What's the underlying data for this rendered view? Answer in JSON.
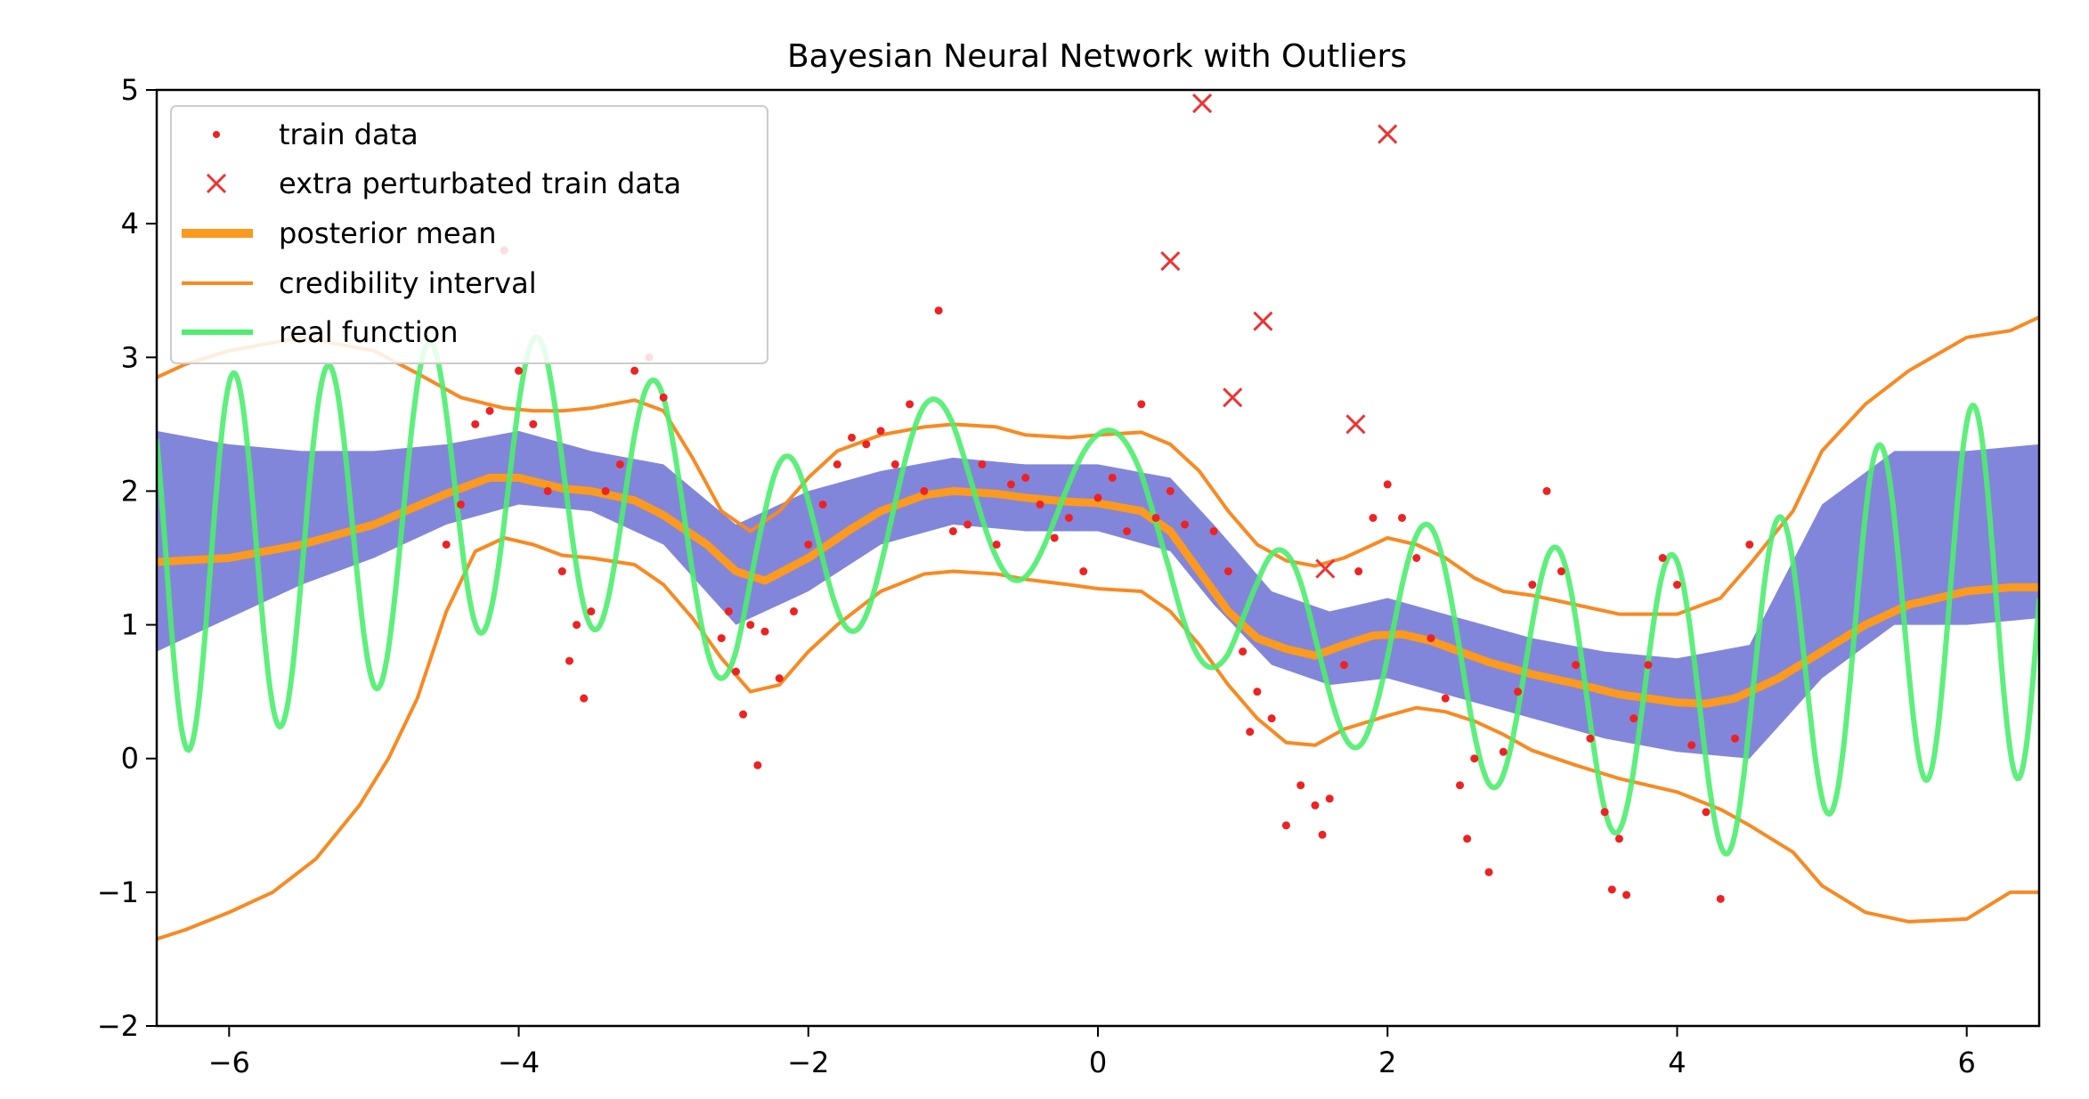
{
  "chart_data": {
    "type": "line",
    "title": "Bayesian Neural Network with Outliers",
    "xlabel": "",
    "ylabel": "",
    "xlim": [
      -6.5,
      6.5
    ],
    "ylim": [
      -2,
      5
    ],
    "x_ticks": [
      -6,
      -4,
      -2,
      0,
      2,
      4,
      6
    ],
    "x_tick_labels": [
      "−6",
      "−4",
      "−2",
      "0",
      "2",
      "4",
      "6"
    ],
    "y_ticks": [
      -2,
      -1,
      0,
      1,
      2,
      3,
      4,
      5
    ],
    "y_tick_labels": [
      "−2",
      "−1",
      "0",
      "1",
      "2",
      "3",
      "4",
      "5"
    ],
    "grid": false,
    "legend_position": "top-left",
    "legend": {
      "train": "train data",
      "extra": "extra perturbated train data",
      "mean": "posterior mean",
      "ci": "credibility interval",
      "real": "real function"
    },
    "colors": {
      "train": "#ee2222",
      "extra": "#ee3333",
      "mean": "#fb9a1e",
      "ci": "#f88a22",
      "real": "#4ded6e",
      "samples": "#7b80d8"
    },
    "series": [
      {
        "key": "mean",
        "x": [
          -6.5,
          -6.0,
          -5.5,
          -5.0,
          -4.5,
          -4.2,
          -4.0,
          -3.7,
          -3.5,
          -3.2,
          -3.0,
          -2.7,
          -2.5,
          -2.3,
          -2.0,
          -1.7,
          -1.5,
          -1.2,
          -1.0,
          -0.7,
          -0.5,
          -0.2,
          0.0,
          0.3,
          0.5,
          0.7,
          0.9,
          1.1,
          1.3,
          1.5,
          1.7,
          1.9,
          2.1,
          2.3,
          2.5,
          2.7,
          3.0,
          3.3,
          3.6,
          4.0,
          4.2,
          4.4,
          4.7,
          5.0,
          5.3,
          5.6,
          6.0,
          6.3,
          6.5
        ],
        "y": [
          1.47,
          1.5,
          1.6,
          1.75,
          1.98,
          2.1,
          2.1,
          2.02,
          2.0,
          1.93,
          1.82,
          1.6,
          1.4,
          1.33,
          1.5,
          1.72,
          1.85,
          1.97,
          2.0,
          1.98,
          1.95,
          1.92,
          1.91,
          1.85,
          1.7,
          1.4,
          1.1,
          0.9,
          0.82,
          0.77,
          0.85,
          0.92,
          0.93,
          0.88,
          0.8,
          0.72,
          0.63,
          0.56,
          0.48,
          0.42,
          0.41,
          0.45,
          0.6,
          0.8,
          1.0,
          1.15,
          1.25,
          1.28,
          1.28
        ]
      },
      {
        "key": "ci-upper",
        "x": [
          -6.5,
          -6.3,
          -6.0,
          -5.5,
          -5.0,
          -4.7,
          -4.4,
          -4.1,
          -3.9,
          -3.7,
          -3.5,
          -3.2,
          -3.0,
          -2.8,
          -2.6,
          -2.4,
          -2.2,
          -2.0,
          -1.8,
          -1.5,
          -1.2,
          -1.0,
          -0.7,
          -0.5,
          -0.2,
          0.0,
          0.3,
          0.5,
          0.7,
          0.9,
          1.1,
          1.3,
          1.5,
          1.7,
          2.0,
          2.2,
          2.4,
          2.6,
          2.8,
          3.0,
          3.3,
          3.6,
          4.0,
          4.3,
          4.5,
          4.8,
          5.0,
          5.3,
          5.6,
          6.0,
          6.3,
          6.5
        ],
        "y": [
          2.85,
          2.95,
          3.05,
          3.15,
          3.05,
          2.88,
          2.7,
          2.62,
          2.6,
          2.6,
          2.62,
          2.68,
          2.6,
          2.25,
          1.85,
          1.7,
          1.85,
          2.1,
          2.3,
          2.42,
          2.48,
          2.5,
          2.48,
          2.42,
          2.4,
          2.42,
          2.44,
          2.35,
          2.15,
          1.85,
          1.6,
          1.48,
          1.44,
          1.5,
          1.65,
          1.6,
          1.5,
          1.35,
          1.25,
          1.22,
          1.15,
          1.08,
          1.08,
          1.2,
          1.45,
          1.85,
          2.3,
          2.65,
          2.9,
          3.15,
          3.2,
          3.3
        ]
      },
      {
        "key": "ci-lower",
        "x": [
          -6.5,
          -6.3,
          -6.0,
          -5.7,
          -5.4,
          -5.1,
          -4.9,
          -4.7,
          -4.5,
          -4.3,
          -4.1,
          -3.9,
          -3.7,
          -3.5,
          -3.2,
          -3.0,
          -2.8,
          -2.6,
          -2.4,
          -2.2,
          -2.0,
          -1.8,
          -1.5,
          -1.2,
          -1.0,
          -0.7,
          -0.5,
          -0.2,
          0.0,
          0.3,
          0.5,
          0.7,
          0.9,
          1.1,
          1.3,
          1.5,
          1.7,
          2.0,
          2.2,
          2.4,
          2.6,
          2.8,
          3.0,
          3.3,
          3.6,
          4.0,
          4.3,
          4.5,
          4.8,
          5.0,
          5.3,
          5.6,
          6.0,
          6.3,
          6.5
        ],
        "y": [
          -1.35,
          -1.28,
          -1.15,
          -1.0,
          -0.75,
          -0.35,
          0.0,
          0.45,
          1.1,
          1.55,
          1.65,
          1.6,
          1.52,
          1.5,
          1.45,
          1.3,
          1.05,
          0.75,
          0.5,
          0.55,
          0.8,
          1.0,
          1.25,
          1.38,
          1.4,
          1.38,
          1.34,
          1.3,
          1.27,
          1.25,
          1.1,
          0.85,
          0.55,
          0.3,
          0.12,
          0.1,
          0.22,
          0.32,
          0.38,
          0.35,
          0.28,
          0.18,
          0.06,
          -0.05,
          -0.15,
          -0.25,
          -0.38,
          -0.5,
          -0.7,
          -0.95,
          -1.15,
          -1.22,
          -1.2,
          -1.0,
          -1.0
        ]
      }
    ],
    "real_function": {
      "x_range": [
        -6.5,
        6.5
      ],
      "note": "oscillating signal around the posterior trend"
    },
    "samples_band": {
      "x": [
        -6.5,
        -6.0,
        -5.5,
        -5.0,
        -4.5,
        -4.0,
        -3.5,
        -3.0,
        -2.5,
        -2.0,
        -1.5,
        -1.0,
        -0.5,
        0.0,
        0.5,
        0.8,
        1.2,
        1.6,
        2.0,
        2.5,
        3.0,
        3.5,
        4.0,
        4.5,
        5.0,
        5.5,
        6.0,
        6.5
      ],
      "lower": [
        0.8,
        1.05,
        1.3,
        1.5,
        1.75,
        1.9,
        1.85,
        1.6,
        1.0,
        1.25,
        1.6,
        1.75,
        1.7,
        1.7,
        1.55,
        1.15,
        0.7,
        0.55,
        0.6,
        0.45,
        0.3,
        0.15,
        0.05,
        0.0,
        0.6,
        1.0,
        1.0,
        1.05
      ],
      "upper": [
        2.45,
        2.35,
        2.3,
        2.3,
        2.35,
        2.45,
        2.3,
        2.2,
        1.75,
        2.0,
        2.15,
        2.25,
        2.2,
        2.2,
        2.1,
        1.75,
        1.25,
        1.1,
        1.2,
        1.05,
        0.9,
        0.8,
        0.75,
        0.85,
        1.9,
        2.3,
        2.3,
        2.35
      ]
    },
    "train_points": [
      [
        -4.5,
        1.6
      ],
      [
        -4.4,
        1.9
      ],
      [
        -4.3,
        2.5
      ],
      [
        -4.2,
        2.6
      ],
      [
        -4.1,
        3.8
      ],
      [
        -4.0,
        2.9
      ],
      [
        -3.9,
        2.5
      ],
      [
        -3.8,
        2.0
      ],
      [
        -3.7,
        1.4
      ],
      [
        -3.65,
        0.73
      ],
      [
        -3.6,
        1.0
      ],
      [
        -3.55,
        0.45
      ],
      [
        -3.5,
        1.1
      ],
      [
        -3.4,
        2.0
      ],
      [
        -3.3,
        2.2
      ],
      [
        -3.2,
        2.9
      ],
      [
        -3.1,
        3.0
      ],
      [
        -3.0,
        2.7
      ],
      [
        -2.6,
        0.9
      ],
      [
        -2.55,
        1.1
      ],
      [
        -2.5,
        0.65
      ],
      [
        -2.45,
        0.33
      ],
      [
        -2.4,
        1.0
      ],
      [
        -2.35,
        -0.05
      ],
      [
        -2.3,
        0.95
      ],
      [
        -2.2,
        0.6
      ],
      [
        -2.1,
        1.1
      ],
      [
        -2.0,
        1.6
      ],
      [
        -1.9,
        1.9
      ],
      [
        -1.8,
        2.2
      ],
      [
        -1.7,
        2.4
      ],
      [
        -1.6,
        2.35
      ],
      [
        -1.5,
        2.45
      ],
      [
        -1.4,
        2.2
      ],
      [
        -1.3,
        2.65
      ],
      [
        -1.2,
        2.0
      ],
      [
        -1.1,
        3.35
      ],
      [
        -1.0,
        1.7
      ],
      [
        -0.9,
        1.75
      ],
      [
        -0.8,
        2.2
      ],
      [
        -0.7,
        1.6
      ],
      [
        -0.6,
        2.05
      ],
      [
        -0.5,
        2.1
      ],
      [
        -0.4,
        1.9
      ],
      [
        -0.3,
        1.65
      ],
      [
        -0.2,
        1.8
      ],
      [
        -0.1,
        1.4
      ],
      [
        0.0,
        1.95
      ],
      [
        0.1,
        2.1
      ],
      [
        0.2,
        1.7
      ],
      [
        0.3,
        2.65
      ],
      [
        0.4,
        1.8
      ],
      [
        0.5,
        2.0
      ],
      [
        0.6,
        1.75
      ],
      [
        0.8,
        1.7
      ],
      [
        0.9,
        1.4
      ],
      [
        1.0,
        0.8
      ],
      [
        1.05,
        0.2
      ],
      [
        1.1,
        0.5
      ],
      [
        1.2,
        0.3
      ],
      [
        1.3,
        -0.5
      ],
      [
        1.4,
        -0.2
      ],
      [
        1.5,
        -0.35
      ],
      [
        1.55,
        -0.57
      ],
      [
        1.6,
        -0.3
      ],
      [
        1.7,
        0.7
      ],
      [
        1.8,
        1.4
      ],
      [
        1.9,
        1.8
      ],
      [
        2.0,
        2.05
      ],
      [
        2.1,
        1.8
      ],
      [
        2.2,
        1.5
      ],
      [
        2.3,
        0.9
      ],
      [
        2.4,
        0.45
      ],
      [
        2.5,
        -0.2
      ],
      [
        2.55,
        -0.6
      ],
      [
        2.6,
        0.0
      ],
      [
        2.7,
        -0.85
      ],
      [
        2.8,
        0.05
      ],
      [
        2.9,
        0.5
      ],
      [
        3.0,
        1.3
      ],
      [
        3.1,
        2.0
      ],
      [
        3.2,
        1.4
      ],
      [
        3.3,
        0.7
      ],
      [
        3.4,
        0.15
      ],
      [
        3.5,
        -0.4
      ],
      [
        3.55,
        -0.98
      ],
      [
        3.6,
        -0.6
      ],
      [
        3.65,
        -1.02
      ],
      [
        3.7,
        0.3
      ],
      [
        3.8,
        0.7
      ],
      [
        3.9,
        1.5
      ],
      [
        4.0,
        1.3
      ],
      [
        4.1,
        0.1
      ],
      [
        4.2,
        -0.4
      ],
      [
        4.3,
        -1.05
      ],
      [
        4.4,
        0.15
      ],
      [
        4.5,
        1.6
      ]
    ],
    "extra_points": [
      [
        0.5,
        3.72
      ],
      [
        0.72,
        4.9
      ],
      [
        0.93,
        2.7
      ],
      [
        1.14,
        3.27
      ],
      [
        1.57,
        1.42
      ],
      [
        1.78,
        2.5
      ],
      [
        2.0,
        4.67
      ]
    ]
  }
}
